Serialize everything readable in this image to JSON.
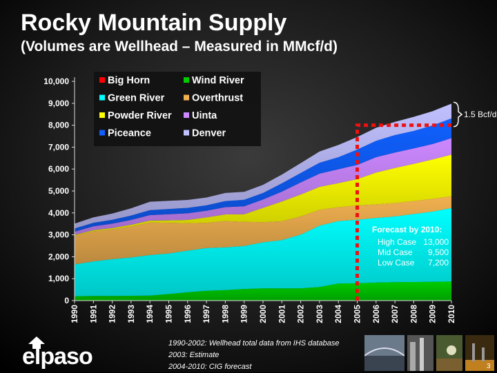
{
  "title": "Rocky Mountain Supply",
  "subtitle": "(Volumes are Wellhead – Measured in MMcf/d)",
  "chart_data": {
    "type": "area",
    "stacked": true,
    "x": [
      1990,
      1991,
      1992,
      1993,
      1994,
      1995,
      1996,
      1997,
      1998,
      1999,
      2000,
      2001,
      2002,
      2003,
      2004,
      2005,
      2006,
      2007,
      2008,
      2009,
      2010
    ],
    "x_tick_labels": [
      "1990",
      "1991",
      "1992",
      "1993",
      "1994",
      "1995",
      "1996",
      "1997",
      "1998",
      "1999",
      "2000",
      "2001",
      "2002",
      "2003",
      "2004",
      "2005",
      "2006",
      "2007",
      "2008",
      "2009",
      "2010"
    ],
    "y_tick_labels": [
      "0",
      "1,000",
      "2,000",
      "3,000",
      "4,000",
      "5,000",
      "6,000",
      "7,000",
      "8,000",
      "9,000",
      "10,000"
    ],
    "ylim": [
      0,
      10000
    ],
    "grid": false,
    "legend_position": "top-left",
    "series": [
      {
        "name": "Big Horn",
        "color": "#ff0000",
        "values": [
          0,
          0,
          0,
          0,
          0,
          0,
          0,
          0,
          0,
          0,
          0,
          0,
          0,
          0,
          0,
          0,
          0,
          0,
          0,
          0,
          0
        ]
      },
      {
        "name": "Wind River",
        "color": "#00cc00",
        "values": [
          200,
          210,
          210,
          220,
          230,
          300,
          380,
          450,
          480,
          530,
          560,
          560,
          560,
          620,
          780,
          790,
          820,
          840,
          850,
          860,
          870
        ]
      },
      {
        "name": "Green River",
        "color": "#00ffff",
        "values": [
          1450,
          1580,
          1680,
          1750,
          1850,
          1850,
          1900,
          1950,
          1950,
          1960,
          2100,
          2200,
          2450,
          2800,
          2850,
          2900,
          2950,
          3000,
          3100,
          3200,
          3350
        ]
      },
      {
        "name": "Overthrust",
        "color": "#f0b050",
        "values": [
          1300,
          1370,
          1360,
          1410,
          1480,
          1400,
          1250,
          1150,
          1200,
          1100,
          920,
          860,
          830,
          720,
          630,
          650,
          620,
          610,
          590,
          580,
          540
        ]
      },
      {
        "name": "Powder River",
        "color": "#ffff00",
        "values": [
          40,
          50,
          60,
          80,
          90,
          110,
          150,
          250,
          300,
          350,
          650,
          900,
          1000,
          1050,
          1100,
          1200,
          1450,
          1600,
          1700,
          1800,
          1900
        ]
      },
      {
        "name": "Uinta",
        "color": "#cc88ff",
        "values": [
          150,
          180,
          200,
          220,
          250,
          280,
          300,
          300,
          330,
          360,
          380,
          450,
          550,
          600,
          630,
          650,
          700,
          700,
          700,
          700,
          750
        ]
      },
      {
        "name": "Piceance",
        "color": "#1060ff",
        "values": [
          150,
          160,
          180,
          200,
          230,
          240,
          250,
          250,
          280,
          300,
          300,
          380,
          430,
          500,
          550,
          700,
          750,
          800,
          800,
          850,
          900
        ]
      },
      {
        "name": "Denver",
        "color": "#c0c0ff",
        "values": [
          220,
          250,
          280,
          330,
          380,
          370,
          360,
          350,
          370,
          360,
          370,
          400,
          450,
          510,
          560,
          570,
          590,
          600,
          640,
          650,
          670
        ]
      }
    ],
    "annotations": {
      "bracket_label": "1.5 Bcf/d",
      "forecast_title": "Forecast by 2010:",
      "forecast_cases": [
        {
          "label": "High Case",
          "value": "13,000"
        },
        {
          "label": "Mid Case",
          "value": "9,500"
        },
        {
          "label": "Low Case",
          "value": "7,200"
        }
      ],
      "forecast_start_year": 2005,
      "forecast_level": 8000
    }
  },
  "footnotes": [
    "1990-2002: Wellhead total data from IHS database",
    "2003: Estimate",
    "2004-2010: CIG forecast"
  ],
  "logo_text": "elpaso",
  "page_number": "3"
}
